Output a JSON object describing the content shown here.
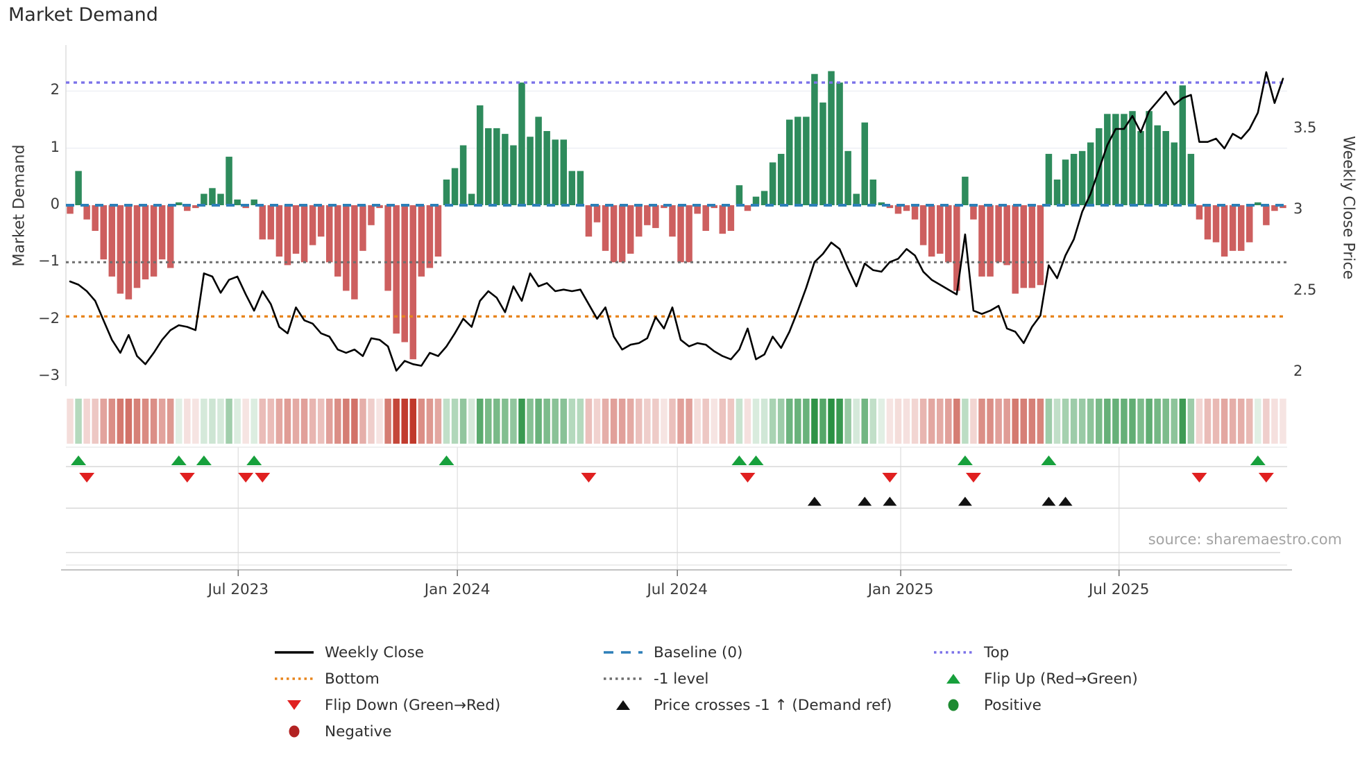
{
  "title": "Market Demand",
  "source": "source: sharemaestro.com",
  "left_axis": {
    "label": "Market Demand",
    "ticks": [
      {
        "label": "2",
        "value": 2
      },
      {
        "label": "1",
        "value": 1
      },
      {
        "label": "0",
        "value": 0
      },
      {
        "label": "−1",
        "value": -1
      },
      {
        "label": "−2",
        "value": -2
      },
      {
        "label": "−3",
        "value": -3
      }
    ]
  },
  "right_axis": {
    "label": "Weekly Close Price",
    "ticks": [
      {
        "label": "3.5",
        "value": 3.5
      },
      {
        "label": "3",
        "value": 3
      },
      {
        "label": "2.5",
        "value": 2.5
      },
      {
        "label": "2",
        "value": 2
      }
    ]
  },
  "x_axis": {
    "ticks": [
      {
        "label": "Jul 2023",
        "week": 20.1
      },
      {
        "label": "Jan 2024",
        "week": 46.3
      },
      {
        "label": "Jul 2024",
        "week": 72.6
      },
      {
        "label": "Jan 2025",
        "week": 99.3
      },
      {
        "label": "Jul 2025",
        "week": 125.4
      }
    ]
  },
  "colors": {
    "bar_green": "#2e8b5c",
    "bar_red": "#cd5f5f",
    "price_line": "#000000",
    "baseline": "#2d7fb8",
    "top_level": "#7b72e9",
    "bottom_level": "#e8851d",
    "minus_one_level": "#6e6e6e",
    "flip_up": "#17a03c",
    "flip_down": "#e02020",
    "price_cross": "#111111",
    "positive_legend": "#1e8a31",
    "negative_legend": "#b22222",
    "heat_red_rgb": "192,57,43",
    "heat_green_rgb": "34,141,60",
    "grid": "#eceef4",
    "panel_grid": "#d8d8d8",
    "spine": "#b9b9b9"
  },
  "legend": [
    {
      "label": "Weekly Close",
      "swatch": "line-solid",
      "color": "#000000",
      "col": 0,
      "row": 0
    },
    {
      "label": "Bottom",
      "swatch": "line-dotted",
      "color": "#e8851d",
      "col": 0,
      "row": 1
    },
    {
      "label": "Flip Down (Green→Red)",
      "swatch": "triangle-down",
      "color": "#e02020",
      "col": 0,
      "row": 2
    },
    {
      "label": "Negative",
      "swatch": "circle",
      "color": "#b22222",
      "col": 0,
      "row": 3
    },
    {
      "label": "Baseline (0)",
      "swatch": "line-dashed",
      "color": "#2d7fb8",
      "col": 1,
      "row": 0
    },
    {
      "label": "-1 level",
      "swatch": "line-dotted",
      "color": "#6e6e6e",
      "col": 1,
      "row": 1
    },
    {
      "label": "Price crosses -1 ↑ (Demand ref)",
      "swatch": "triangle-up",
      "color": "#111111",
      "col": 1,
      "row": 2
    },
    {
      "label": "Top",
      "swatch": "line-dotted",
      "color": "#7b72e9",
      "col": 2,
      "row": 0
    },
    {
      "label": "Flip Up (Red→Green)",
      "swatch": "triangle-up",
      "color": "#17a03c",
      "col": 2,
      "row": 1
    },
    {
      "label": "Positive",
      "swatch": "circle",
      "color": "#1e8a31",
      "col": 2,
      "row": 2
    }
  ],
  "chart_data": {
    "type": "combo-bar-line-heatmap",
    "x_unit": "weekly (Feb 2023 – Nov 2025)",
    "demand_ylim": [
      -3.1,
      2.8
    ],
    "price_ylim": [
      1.95,
      4.0
    ],
    "levels": {
      "baseline": 0,
      "top": 2.15,
      "bottom": -1.95,
      "minus_one": -1
    },
    "demand": [
      -0.15,
      0.6,
      -0.25,
      -0.45,
      -0.95,
      -1.25,
      -1.55,
      -1.65,
      -1.45,
      -1.3,
      -1.25,
      -0.95,
      -1.1,
      0.05,
      -0.1,
      -0.05,
      0.2,
      0.3,
      0.2,
      0.85,
      0.1,
      -0.05,
      0.1,
      -0.6,
      -0.6,
      -0.9,
      -1.05,
      -0.85,
      -1.0,
      -0.7,
      -0.55,
      -1.0,
      -1.25,
      -1.5,
      -1.65,
      -0.8,
      -0.35,
      -0.05,
      -1.5,
      -2.25,
      -2.4,
      -2.7,
      -1.25,
      -1.1,
      -0.9,
      0.45,
      0.65,
      1.05,
      0.2,
      1.75,
      1.35,
      1.35,
      1.25,
      1.05,
      2.15,
      1.2,
      1.55,
      1.3,
      1.15,
      1.15,
      0.6,
      0.6,
      -0.55,
      -0.3,
      -0.8,
      -1.0,
      -1.0,
      -0.85,
      -0.55,
      -0.35,
      -0.4,
      -0.05,
      -0.55,
      -1.0,
      -1.0,
      -0.15,
      -0.45,
      -0.05,
      -0.5,
      -0.45,
      0.35,
      -0.1,
      0.15,
      0.25,
      0.75,
      0.9,
      1.5,
      1.55,
      1.55,
      2.3,
      1.8,
      2.35,
      2.15,
      0.95,
      0.2,
      1.45,
      0.45,
      0.05,
      -0.05,
      -0.15,
      -0.1,
      -0.25,
      -0.7,
      -0.9,
      -0.85,
      -1.0,
      -1.5,
      0.5,
      -0.25,
      -1.25,
      -1.25,
      -1.0,
      -1.05,
      -1.55,
      -1.45,
      -1.45,
      -1.4,
      0.9,
      0.45,
      0.8,
      0.9,
      0.95,
      1.1,
      1.35,
      1.6,
      1.6,
      1.6,
      1.65,
      1.3,
      1.65,
      1.4,
      1.3,
      1.1,
      2.1,
      0.9,
      -0.25,
      -0.6,
      -0.65,
      -0.9,
      -0.8,
      -0.8,
      -0.65,
      0.05,
      -0.35,
      -0.1,
      -0.05
    ],
    "price": [
      2.56,
      2.54,
      2.5,
      2.44,
      2.32,
      2.2,
      2.12,
      2.23,
      2.1,
      2.05,
      2.12,
      2.2,
      2.26,
      2.29,
      2.28,
      2.26,
      2.61,
      2.59,
      2.49,
      2.57,
      2.59,
      2.48,
      2.38,
      2.5,
      2.42,
      2.28,
      2.24,
      2.4,
      2.32,
      2.3,
      2.24,
      2.22,
      2.14,
      2.12,
      2.14,
      2.1,
      2.21,
      2.2,
      2.16,
      2.01,
      2.07,
      2.05,
      2.04,
      2.12,
      2.1,
      2.16,
      2.24,
      2.33,
      2.28,
      2.44,
      2.5,
      2.46,
      2.37,
      2.53,
      2.44,
      2.61,
      2.53,
      2.55,
      2.5,
      2.51,
      2.5,
      2.51,
      2.42,
      2.33,
      2.4,
      2.22,
      2.14,
      2.17,
      2.18,
      2.21,
      2.34,
      2.27,
      2.4,
      2.2,
      2.16,
      2.18,
      2.17,
      2.13,
      2.1,
      2.08,
      2.14,
      2.27,
      2.08,
      2.11,
      2.22,
      2.15,
      2.25,
      2.38,
      2.52,
      2.68,
      2.73,
      2.8,
      2.76,
      2.64,
      2.53,
      2.67,
      2.63,
      2.62,
      2.68,
      2.7,
      2.76,
      2.72,
      2.62,
      2.57,
      2.54,
      2.51,
      2.48,
      2.85,
      2.38,
      2.36,
      2.38,
      2.41,
      2.27,
      2.25,
      2.18,
      2.28,
      2.35,
      2.66,
      2.58,
      2.72,
      2.82,
      2.99,
      3.1,
      3.25,
      3.4,
      3.5,
      3.5,
      3.58,
      3.48,
      3.61,
      3.67,
      3.73,
      3.65,
      3.69,
      3.71,
      3.42,
      3.42,
      3.44,
      3.38,
      3.47,
      3.44,
      3.5,
      3.6,
      3.85,
      3.66,
      3.81
    ],
    "markers": {
      "flip_up_weeks": [
        1,
        13,
        16,
        22,
        45,
        80,
        82,
        107,
        117,
        142
      ],
      "flip_down_weeks": [
        2,
        14,
        21,
        23,
        62,
        81,
        98,
        108,
        135,
        143
      ],
      "price_cross_weeks": [
        89,
        95,
        98,
        107,
        117,
        119
      ]
    }
  }
}
